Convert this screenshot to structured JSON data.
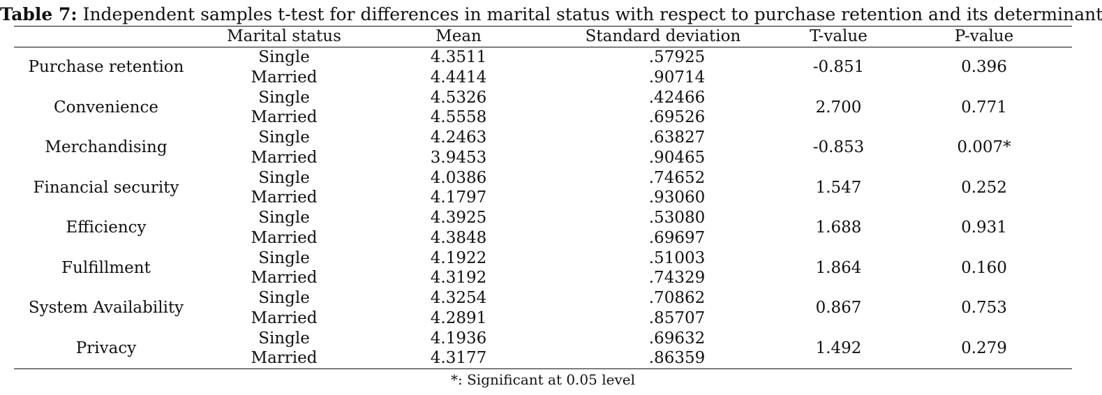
{
  "caption": {
    "label": "Table 7:",
    "text": " Independent samples t-test for differences in marital status with respect to purchase retention and its determinants"
  },
  "columns": {
    "variable": "",
    "marital_status": "Marital status",
    "mean": "Mean",
    "std_dev": "Standard deviation",
    "t_value": "T-value",
    "p_value": "P-value"
  },
  "rows": [
    {
      "variable": "Purchase retention",
      "status1": "Single",
      "status2": "Married",
      "mean1": "4.3511",
      "mean2": "4.4414",
      "sd1": ".57925",
      "sd2": ".90714",
      "t": "-0.851",
      "p": "0.396"
    },
    {
      "variable": "Convenience",
      "status1": "Single",
      "status2": "Married",
      "mean1": "4.5326",
      "mean2": "4.5558",
      "sd1": ".42466",
      "sd2": ".69526",
      "t": "2.700",
      "p": "0.771"
    },
    {
      "variable": "Merchandising",
      "status1": "Single",
      "status2": "Married",
      "mean1": "4.2463",
      "mean2": "3.9453",
      "sd1": ".63827",
      "sd2": ".90465",
      "t": "-0.853",
      "p": "0.007*"
    },
    {
      "variable": "Financial security",
      "status1": "Single",
      "status2": "Married",
      "mean1": "4.0386",
      "mean2": "4.1797",
      "sd1": ".74652",
      "sd2": ".93060",
      "t": "1.547",
      "p": "0.252"
    },
    {
      "variable": "Efficiency",
      "status1": "Single",
      "status2": "Married",
      "mean1": "4.3925",
      "mean2": "4.3848",
      "sd1": ".53080",
      "sd2": ".69697",
      "t": "1.688",
      "p": "0.931"
    },
    {
      "variable": "Fulfillment",
      "status1": "Single",
      "status2": "Married",
      "mean1": "4.1922",
      "mean2": "4.3192",
      "sd1": ".51003",
      "sd2": ".74329",
      "t": "1.864",
      "p": "0.160"
    },
    {
      "variable": "System Availability",
      "status1": "Single",
      "status2": "Married",
      "mean1": "4.3254",
      "mean2": "4.2891",
      "sd1": ".70862",
      "sd2": ".85707",
      "t": "0.867",
      "p": "0.753"
    },
    {
      "variable": "Privacy",
      "status1": "Single",
      "status2": "Married",
      "mean1": "4.1936",
      "mean2": "4.3177",
      "sd1": ".69632",
      "sd2": ".86359",
      "t": "1.492",
      "p": "0.279"
    }
  ],
  "footnote": "*: Significant at 0.05 level"
}
